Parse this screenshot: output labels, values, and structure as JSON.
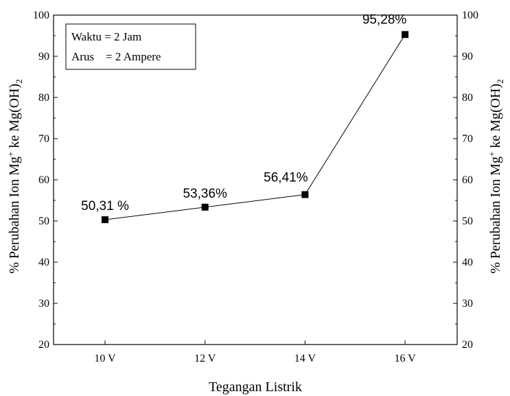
{
  "chart_data": {
    "type": "line",
    "categories": [
      "10 V",
      "12 V",
      "14 V",
      "16 V"
    ],
    "values": [
      50.31,
      53.36,
      56.41,
      95.28
    ],
    "data_labels": [
      "50,31 %",
      "53,36%",
      "56,41%",
      "95,28%"
    ],
    "xlabel": "Tegangan Listrik",
    "ylabel": {
      "prefix": "% Perubahan Ion Mg",
      "sup": "+",
      "middle": " ke Mg(OH)",
      "sub": "2"
    },
    "ylim": [
      20,
      100
    ],
    "yticks": [
      "20",
      "30",
      "40",
      "50",
      "60",
      "70",
      "80",
      "90",
      "100"
    ],
    "secondary_y_axis": true,
    "grid": false,
    "marker": "square",
    "line_color": "#000000",
    "annotation_box": {
      "lines": [
        "Waktu = 2 Jam",
        "Arus    = 2 Ampere"
      ],
      "placement": "top-left"
    }
  }
}
